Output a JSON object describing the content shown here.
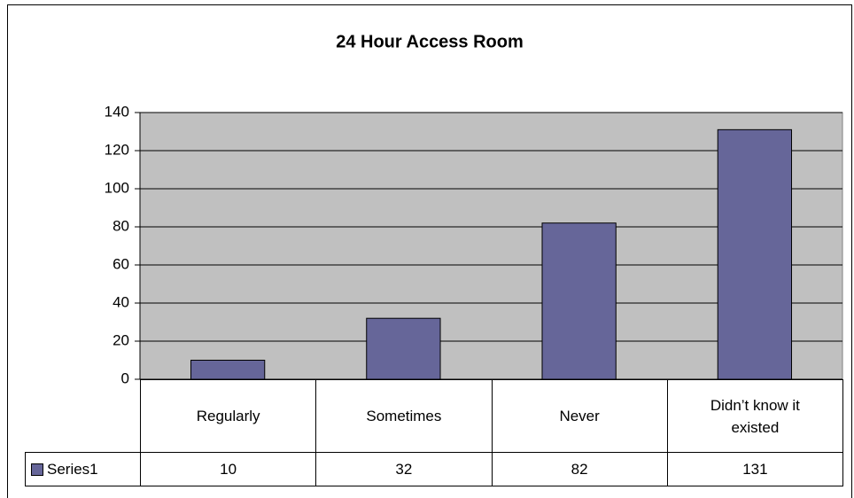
{
  "chart_data": {
    "type": "bar",
    "title": "24 Hour Access Room",
    "categories": [
      "Regularly",
      "Sometimes",
      "Never",
      "Didn’t know it existed"
    ],
    "series": [
      {
        "name": "Series1",
        "color": "#666699",
        "values": [
          10,
          32,
          82,
          131
        ]
      }
    ],
    "ylim": [
      0,
      140
    ],
    "yticks": [
      0,
      20,
      40,
      60,
      80,
      100,
      120,
      140
    ],
    "grid": true,
    "plot_background": "#c0c0c0",
    "data_table": true
  }
}
